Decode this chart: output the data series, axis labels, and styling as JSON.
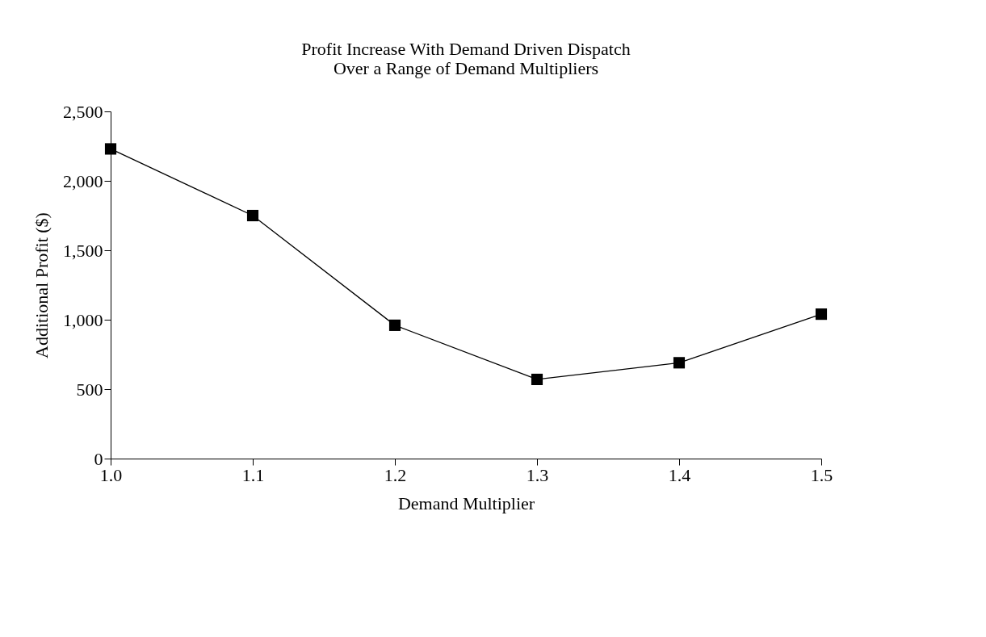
{
  "chart_data": {
    "type": "line",
    "title": [
      "Profit Increase With Demand Driven Dispatch",
      "Over a Range of Demand Multipliers"
    ],
    "xlabel": "Demand Multiplier",
    "ylabel": "Additional Profit ($)",
    "x": [
      1.0,
      1.1,
      1.2,
      1.3,
      1.4,
      1.5
    ],
    "series": [
      {
        "color": "#000000",
        "values": [
          2230,
          1750,
          960,
          570,
          690,
          1040
        ]
      }
    ],
    "xlim": [
      1.0,
      1.5
    ],
    "xticks": [
      {
        "value": 1.0,
        "label": "1.0"
      },
      1.1,
      1.2,
      1.3,
      1.4,
      1.5
    ],
    "ylim": [
      0,
      2500
    ],
    "yticks": [
      0,
      500,
      {
        "value": 1000,
        "label": "1,000"
      },
      {
        "value": 1500,
        "label": "1,500"
      },
      {
        "value": 2000,
        "label": "2,000"
      },
      {
        "value": 2500,
        "label": "2,500"
      }
    ],
    "marker": "square",
    "line_style": "solid",
    "grid": false
  }
}
